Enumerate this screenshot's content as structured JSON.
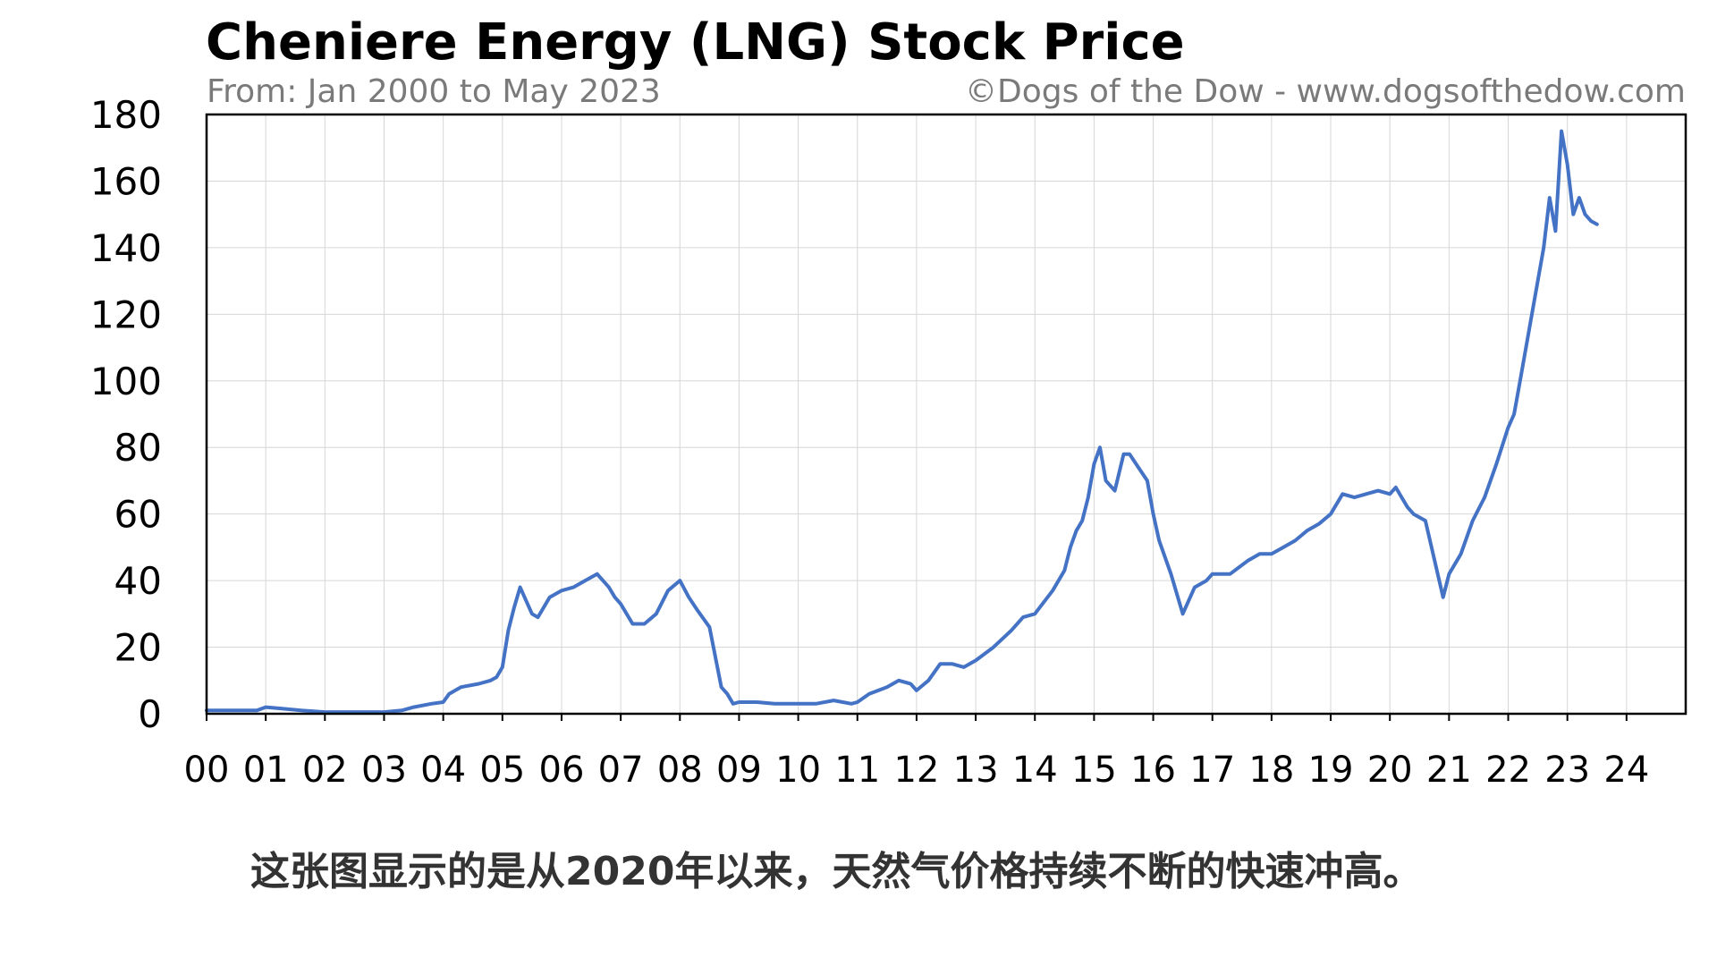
{
  "chart_data": {
    "type": "line",
    "title": "Cheniere Energy (LNG) Stock Price",
    "subtitle_left": "From: Jan 2000 to May 2023",
    "subtitle_right": "©Dogs of the Dow - www.dogsofthedow.com",
    "xlabel": "",
    "ylabel": "",
    "xlim": [
      2000,
      2025
    ],
    "ylim": [
      0,
      180
    ],
    "x_ticks": [
      2000,
      2001,
      2002,
      2003,
      2004,
      2005,
      2006,
      2007,
      2008,
      2009,
      2010,
      2011,
      2012,
      2013,
      2014,
      2015,
      2016,
      2017,
      2018,
      2019,
      2020,
      2021,
      2022,
      2023,
      2024
    ],
    "x_tick_labels": [
      "00",
      "01",
      "02",
      "03",
      "04",
      "05",
      "06",
      "07",
      "08",
      "09",
      "10",
      "11",
      "12",
      "13",
      "14",
      "15",
      "16",
      "17",
      "18",
      "19",
      "20",
      "21",
      "22",
      "23",
      "24"
    ],
    "y_ticks": [
      0,
      20,
      40,
      60,
      80,
      100,
      120,
      140,
      160,
      180
    ],
    "y_tick_labels": [
      "0",
      "20",
      "40",
      "60",
      "80",
      "100",
      "120",
      "140",
      "160",
      "180"
    ],
    "grid": true,
    "line_color": "#4472c4",
    "series": [
      {
        "x": [
          2000.0,
          2000.5,
          2000.85,
          2001.0,
          2001.3,
          2001.6,
          2002.0,
          2002.5,
          2003.0,
          2003.3,
          2003.5,
          2003.8,
          2004.0,
          2004.1,
          2004.3,
          2004.6,
          2004.8,
          2004.9,
          2005.0,
          2005.1,
          2005.2,
          2005.3,
          2005.5,
          2005.6,
          2005.8,
          2006.0,
          2006.2,
          2006.4,
          2006.6,
          2006.8,
          2006.9,
          2007.0,
          2007.2,
          2007.4,
          2007.6,
          2007.8,
          2008.0,
          2008.15,
          2008.3,
          2008.5,
          2008.7,
          2008.8,
          2008.9,
          2009.0,
          2009.3,
          2009.6,
          2009.9,
          2010.0,
          2010.3,
          2010.6,
          2010.9,
          2011.0,
          2011.2,
          2011.5,
          2011.7,
          2011.9,
          2012.0,
          2012.2,
          2012.4,
          2012.6,
          2012.8,
          2013.0,
          2013.3,
          2013.6,
          2013.8,
          2014.0,
          2014.3,
          2014.5,
          2014.6,
          2014.7,
          2014.8,
          2014.9,
          2015.0,
          2015.1,
          2015.2,
          2015.35,
          2015.5,
          2015.6,
          2015.75,
          2015.9,
          2016.0,
          2016.1,
          2016.3,
          2016.5,
          2016.7,
          2016.9,
          2017.0,
          2017.3,
          2017.6,
          2017.8,
          2018.0,
          2018.2,
          2018.4,
          2018.6,
          2018.8,
          2019.0,
          2019.2,
          2019.4,
          2019.6,
          2019.8,
          2020.0,
          2020.1,
          2020.2,
          2020.3,
          2020.4,
          2020.6,
          2020.9,
          2021.0,
          2021.2,
          2021.4,
          2021.6,
          2021.8,
          2022.0,
          2022.1,
          2022.2,
          2022.3,
          2022.4,
          2022.5,
          2022.6,
          2022.7,
          2022.8,
          2022.9,
          2023.0,
          2023.1,
          2023.2,
          2023.3,
          2023.4,
          2023.5
        ],
        "y": [
          1,
          1,
          1,
          2,
          1.5,
          1,
          0.5,
          0.5,
          0.5,
          1,
          2,
          3,
          3.5,
          6,
          8,
          9,
          10,
          11,
          14,
          25,
          32,
          38,
          30,
          29,
          35,
          37,
          38,
          40,
          42,
          38,
          35,
          33,
          27,
          27,
          30,
          37,
          40,
          35,
          31,
          26,
          8,
          6,
          3,
          3.5,
          3.5,
          3,
          3,
          3,
          3,
          4,
          3,
          3.5,
          6,
          8,
          10,
          9,
          7,
          10,
          15,
          15,
          14,
          16,
          20,
          25,
          29,
          30,
          37,
          43,
          50,
          55,
          58,
          65,
          75,
          80,
          70,
          67,
          78,
          78,
          74,
          70,
          60,
          52,
          42,
          30,
          38,
          40,
          42,
          42,
          46,
          48,
          48,
          50,
          52,
          55,
          57,
          60,
          66,
          65,
          66,
          67,
          66,
          68,
          65,
          62,
          60,
          58,
          35,
          42,
          48,
          58,
          65,
          75,
          86,
          90,
          100,
          110,
          120,
          130,
          140,
          155,
          145,
          175,
          165,
          150,
          155,
          150,
          148,
          147
        ],
        "name": ""
      }
    ]
  },
  "caption": "这张图显示的是从2020年以来，天然气价格持续不断的快速冲高。"
}
